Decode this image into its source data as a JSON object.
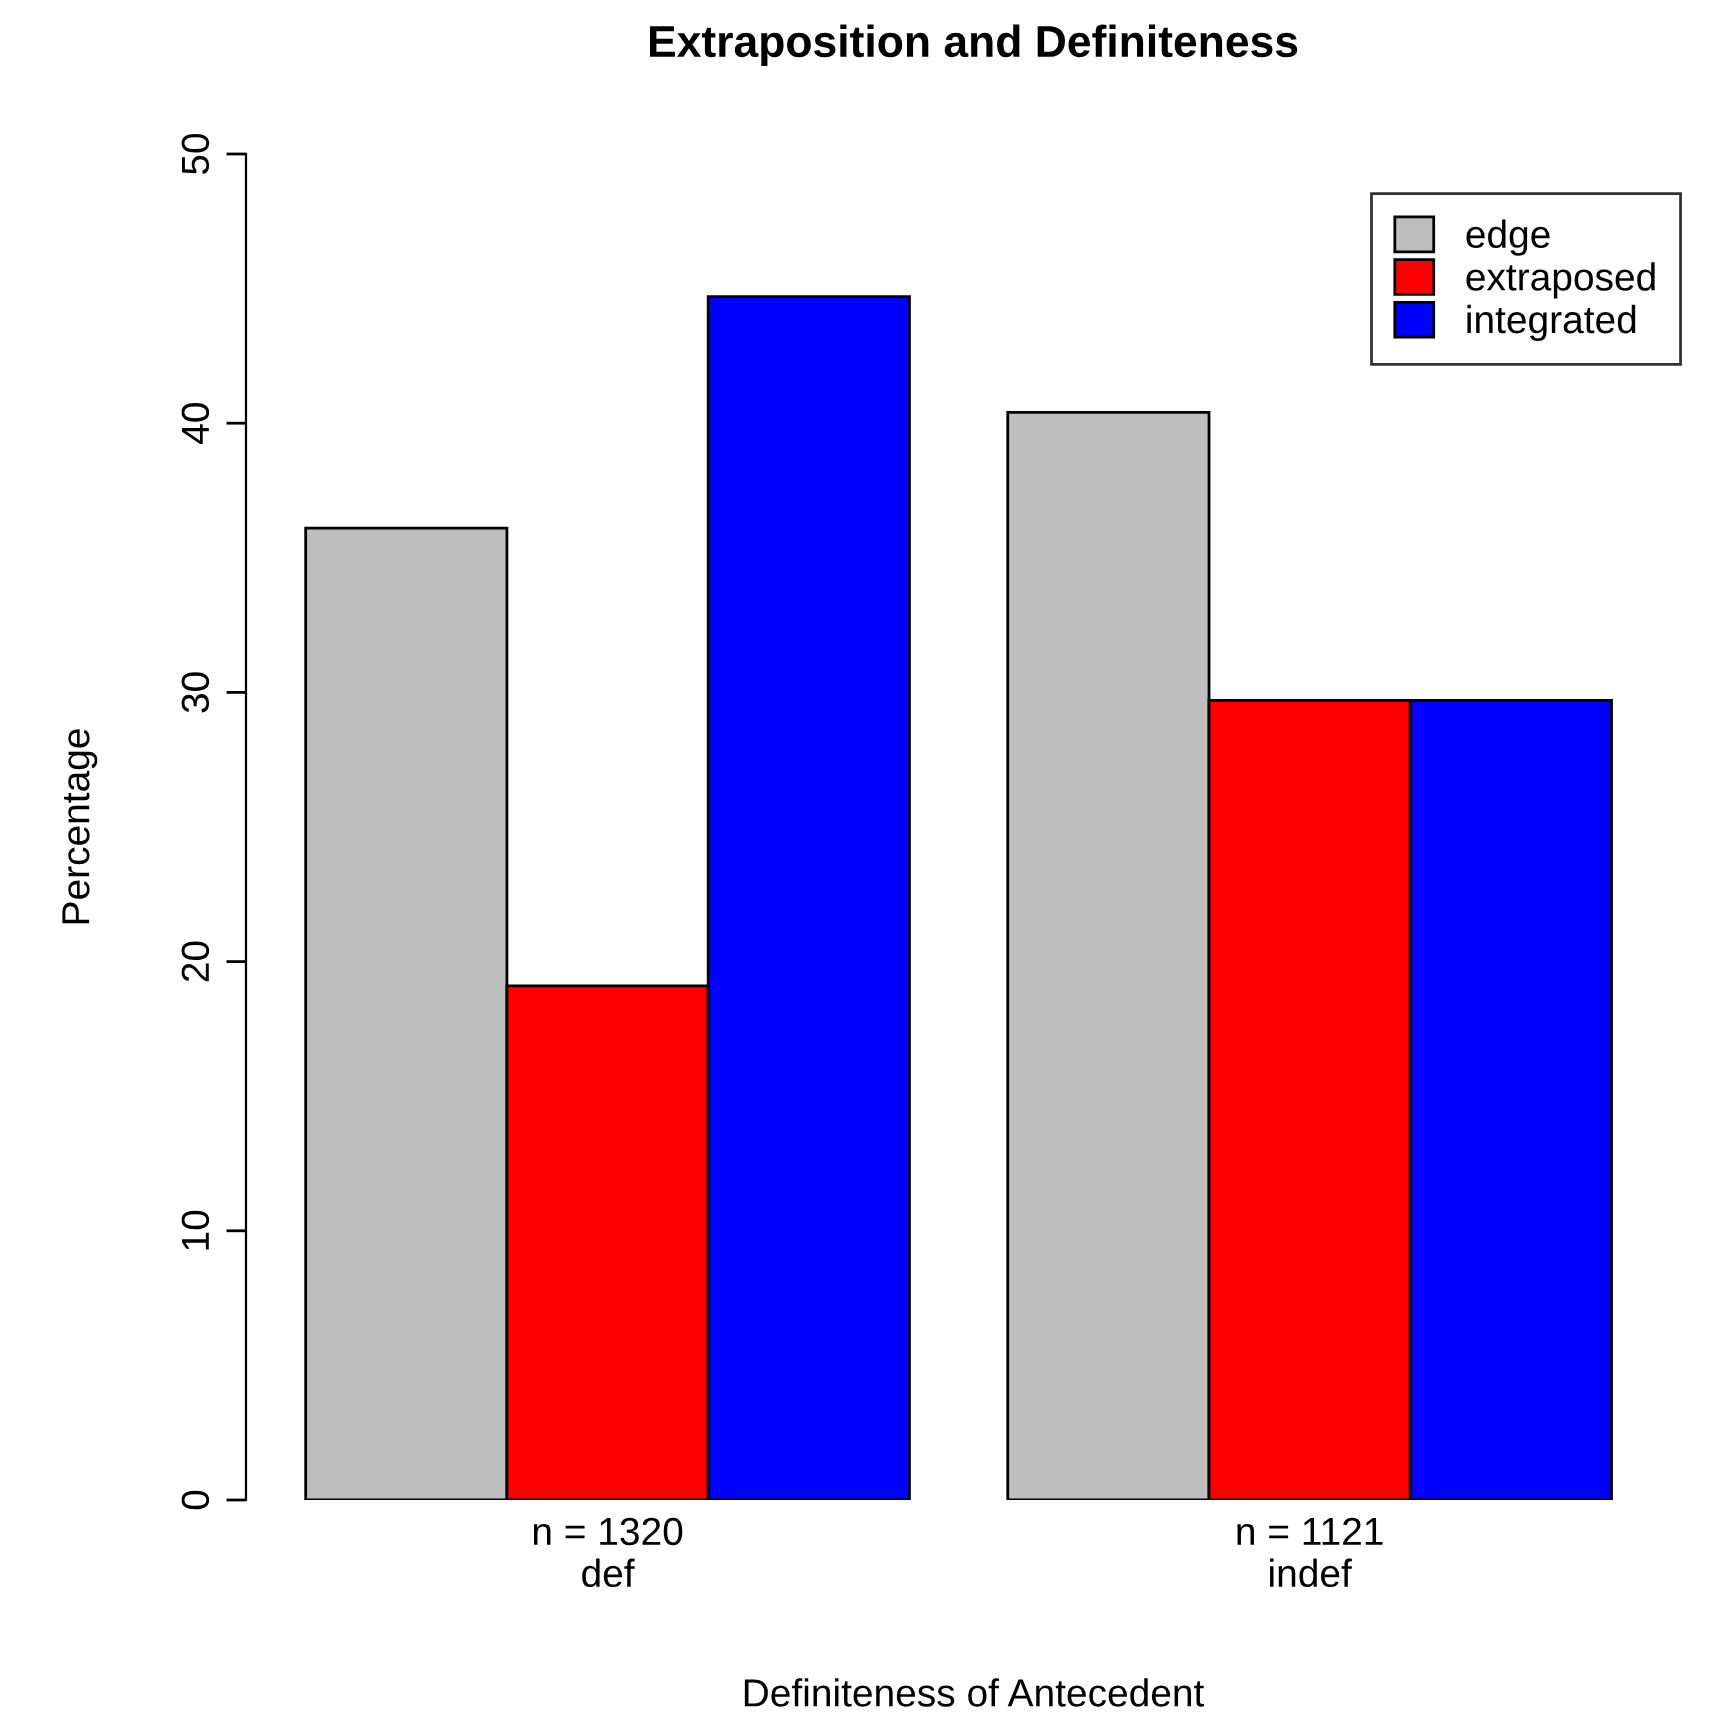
{
  "chart_data": {
    "type": "bar",
    "title": "Extraposition and Definiteness",
    "xlabel": "Definiteness of Antecedent",
    "ylabel": "Percentage",
    "categories": [
      "n = 1320\ndef",
      "n = 1121\nindef"
    ],
    "series": [
      {
        "name": "edge",
        "color": "#bebebe",
        "values": [
          36.1,
          40.4
        ]
      },
      {
        "name": "extraposed",
        "color": "#ff0000",
        "values": [
          19.1,
          29.7
        ]
      },
      {
        "name": "integrated",
        "color": "#0000ff",
        "values": [
          44.7,
          29.7
        ]
      }
    ],
    "ylim": [
      0,
      50
    ],
    "yticks": [
      0,
      10,
      20,
      30,
      40,
      50
    ],
    "grid": false,
    "legend": "top right"
  }
}
